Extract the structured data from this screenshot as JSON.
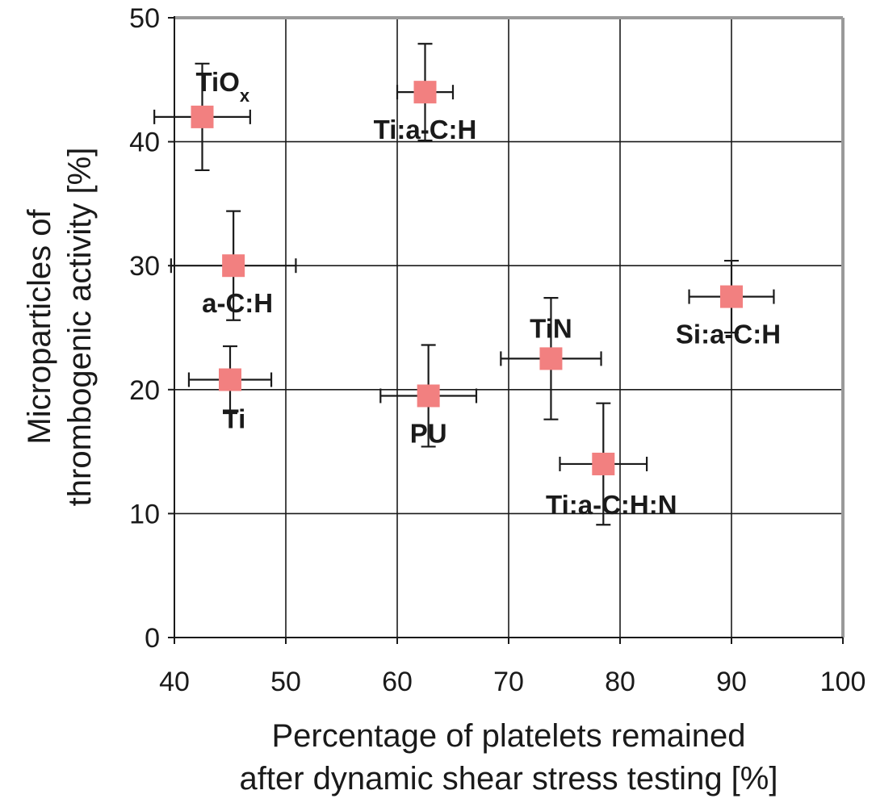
{
  "chart_data": {
    "type": "scatter",
    "xlabel": [
      "Percentage of platelets remained",
      "after dynamic shear stress testing [%]"
    ],
    "ylabel": [
      "Microparticles of",
      "thrombogenic activity [%]"
    ],
    "xlim": [
      40,
      100
    ],
    "ylim": [
      0,
      50
    ],
    "xticks": [
      40,
      50,
      60,
      70,
      80,
      90,
      100
    ],
    "yticks": [
      0,
      10,
      20,
      30,
      40,
      50
    ],
    "grid": true,
    "marker_color": "#f28080",
    "points": [
      {
        "label": "TiO",
        "label_sub": "x",
        "x": 42.5,
        "y": 42.0,
        "xerr": 4.3,
        "yerr": 4.3,
        "label_pos": "above-right"
      },
      {
        "label": "Ti:a-C:H",
        "x": 62.5,
        "y": 44.0,
        "xerr": 2.5,
        "yerr": 3.9,
        "label_pos": "below"
      },
      {
        "label": "a-C:H",
        "x": 45.3,
        "y": 30.0,
        "xerr": 5.6,
        "yerr": 4.4,
        "label_pos": "below"
      },
      {
        "label": "Ti",
        "x": 45.0,
        "y": 20.8,
        "xerr": 3.7,
        "yerr": 2.7,
        "label_pos": "below"
      },
      {
        "label": "PU",
        "x": 62.8,
        "y": 19.5,
        "xerr": 4.3,
        "yerr": 4.1,
        "label_pos": "below"
      },
      {
        "label": "TiN",
        "x": 73.8,
        "y": 22.5,
        "xerr": 4.5,
        "yerr": 4.9,
        "label_pos": "above"
      },
      {
        "label": "Si:a-C:H",
        "x": 90.0,
        "y": 27.5,
        "xerr": 3.8,
        "yerr": 2.9,
        "label_pos": "below"
      },
      {
        "label": "Ti:a-C:H:N",
        "x": 78.5,
        "y": 14.0,
        "xerr": 3.9,
        "yerr": 4.9,
        "label_pos": "below"
      }
    ]
  }
}
